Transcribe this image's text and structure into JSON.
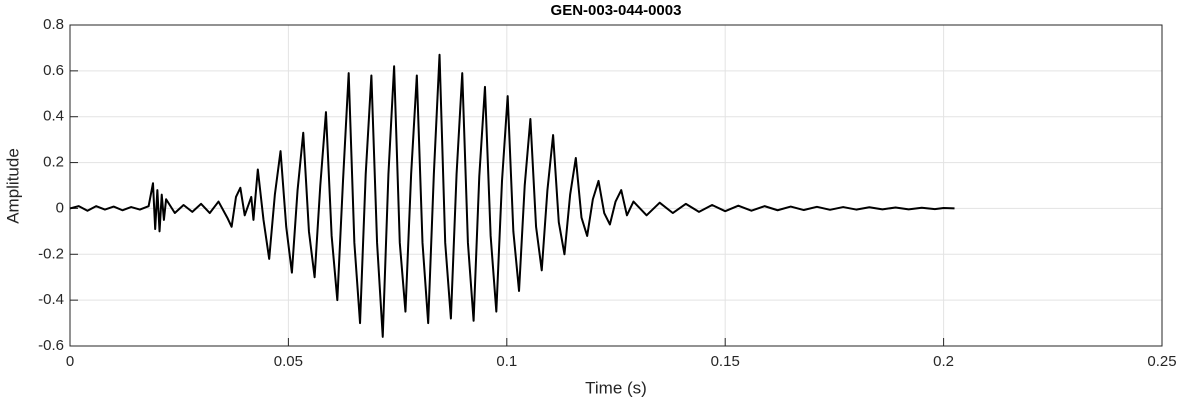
{
  "chart_data": {
    "type": "line",
    "title": "GEN-003-044-0003",
    "xlabel": "Time (s)",
    "ylabel": "Amplitude",
    "xlim": [
      0,
      0.25
    ],
    "ylim": [
      -0.6,
      0.8
    ],
    "xticks": [
      0,
      0.05,
      0.1,
      0.15,
      0.2,
      0.25
    ],
    "yticks": [
      -0.6,
      -0.4,
      -0.2,
      0,
      0.2,
      0.4,
      0.6,
      0.8
    ],
    "grid": true,
    "series": [
      {
        "color": "#000000",
        "x": [
          0,
          0.002,
          0.004,
          0.006,
          0.008,
          0.01,
          0.012,
          0.014,
          0.016,
          0.018,
          0.019,
          0.0195,
          0.02,
          0.0205,
          0.021,
          0.0215,
          0.022,
          0.024,
          0.026,
          0.028,
          0.03,
          0.032,
          0.034,
          0.036,
          0.037,
          0.038,
          0.039,
          0.04,
          0.0415,
          0.042,
          0.043,
          0.0443,
          0.0456,
          0.0469,
          0.0482,
          0.0495,
          0.0508,
          0.0521,
          0.0534,
          0.0547,
          0.056,
          0.0573,
          0.0586,
          0.0599,
          0.0612,
          0.0625,
          0.0638,
          0.0651,
          0.0664,
          0.0677,
          0.069,
          0.0703,
          0.0716,
          0.0729,
          0.0742,
          0.0755,
          0.0768,
          0.0781,
          0.0794,
          0.0807,
          0.082,
          0.0833,
          0.0846,
          0.0859,
          0.0872,
          0.0885,
          0.0898,
          0.0911,
          0.0924,
          0.0937,
          0.095,
          0.0963,
          0.0976,
          0.0989,
          0.1002,
          0.1015,
          0.1028,
          0.1041,
          0.1054,
          0.1067,
          0.108,
          0.1093,
          0.1106,
          0.1119,
          0.1132,
          0.1145,
          0.1158,
          0.1171,
          0.1184,
          0.1197,
          0.121,
          0.1223,
          0.1236,
          0.1249,
          0.1262,
          0.1275,
          0.129,
          0.132,
          0.135,
          0.138,
          0.141,
          0.144,
          0.147,
          0.15,
          0.153,
          0.156,
          0.159,
          0.162,
          0.165,
          0.168,
          0.171,
          0.174,
          0.177,
          0.18,
          0.183,
          0.186,
          0.189,
          0.192,
          0.195,
          0.198,
          0.2,
          0.2025
        ],
        "values": [
          0,
          0.01,
          -0.01,
          0.01,
          -0.005,
          0.008,
          -0.008,
          0.006,
          -0.005,
          0.01,
          0.11,
          -0.09,
          0.08,
          -0.1,
          0.06,
          -0.05,
          0.04,
          -0.02,
          0.015,
          -0.015,
          0.02,
          -0.02,
          0.03,
          -0.04,
          -0.08,
          0.05,
          0.09,
          -0.03,
          0.05,
          -0.05,
          0.17,
          -0.05,
          -0.22,
          0.06,
          0.25,
          -0.08,
          -0.28,
          0.08,
          0.33,
          -0.1,
          -0.3,
          0.1,
          0.42,
          -0.12,
          -0.4,
          0.12,
          0.59,
          -0.15,
          -0.5,
          0.15,
          0.58,
          -0.15,
          -0.56,
          0.15,
          0.62,
          -0.15,
          -0.45,
          0.15,
          0.58,
          -0.15,
          -0.5,
          0.15,
          0.67,
          -0.15,
          -0.48,
          0.15,
          0.59,
          -0.15,
          -0.49,
          0.14,
          0.53,
          -0.12,
          -0.45,
          0.12,
          0.49,
          -0.1,
          -0.36,
          0.1,
          0.39,
          -0.08,
          -0.27,
          0.08,
          0.32,
          -0.06,
          -0.2,
          0.06,
          0.22,
          -0.04,
          -0.12,
          0.04,
          0.12,
          -0.02,
          -0.07,
          0.03,
          0.08,
          -0.03,
          0.03,
          -0.03,
          0.025,
          -0.02,
          0.02,
          -0.015,
          0.015,
          -0.012,
          0.012,
          -0.01,
          0.01,
          -0.008,
          0.008,
          -0.007,
          0.007,
          -0.006,
          0.006,
          -0.005,
          0.005,
          -0.004,
          0.004,
          -0.004,
          0.003,
          -0.003,
          0.002,
          0
        ]
      }
    ]
  }
}
